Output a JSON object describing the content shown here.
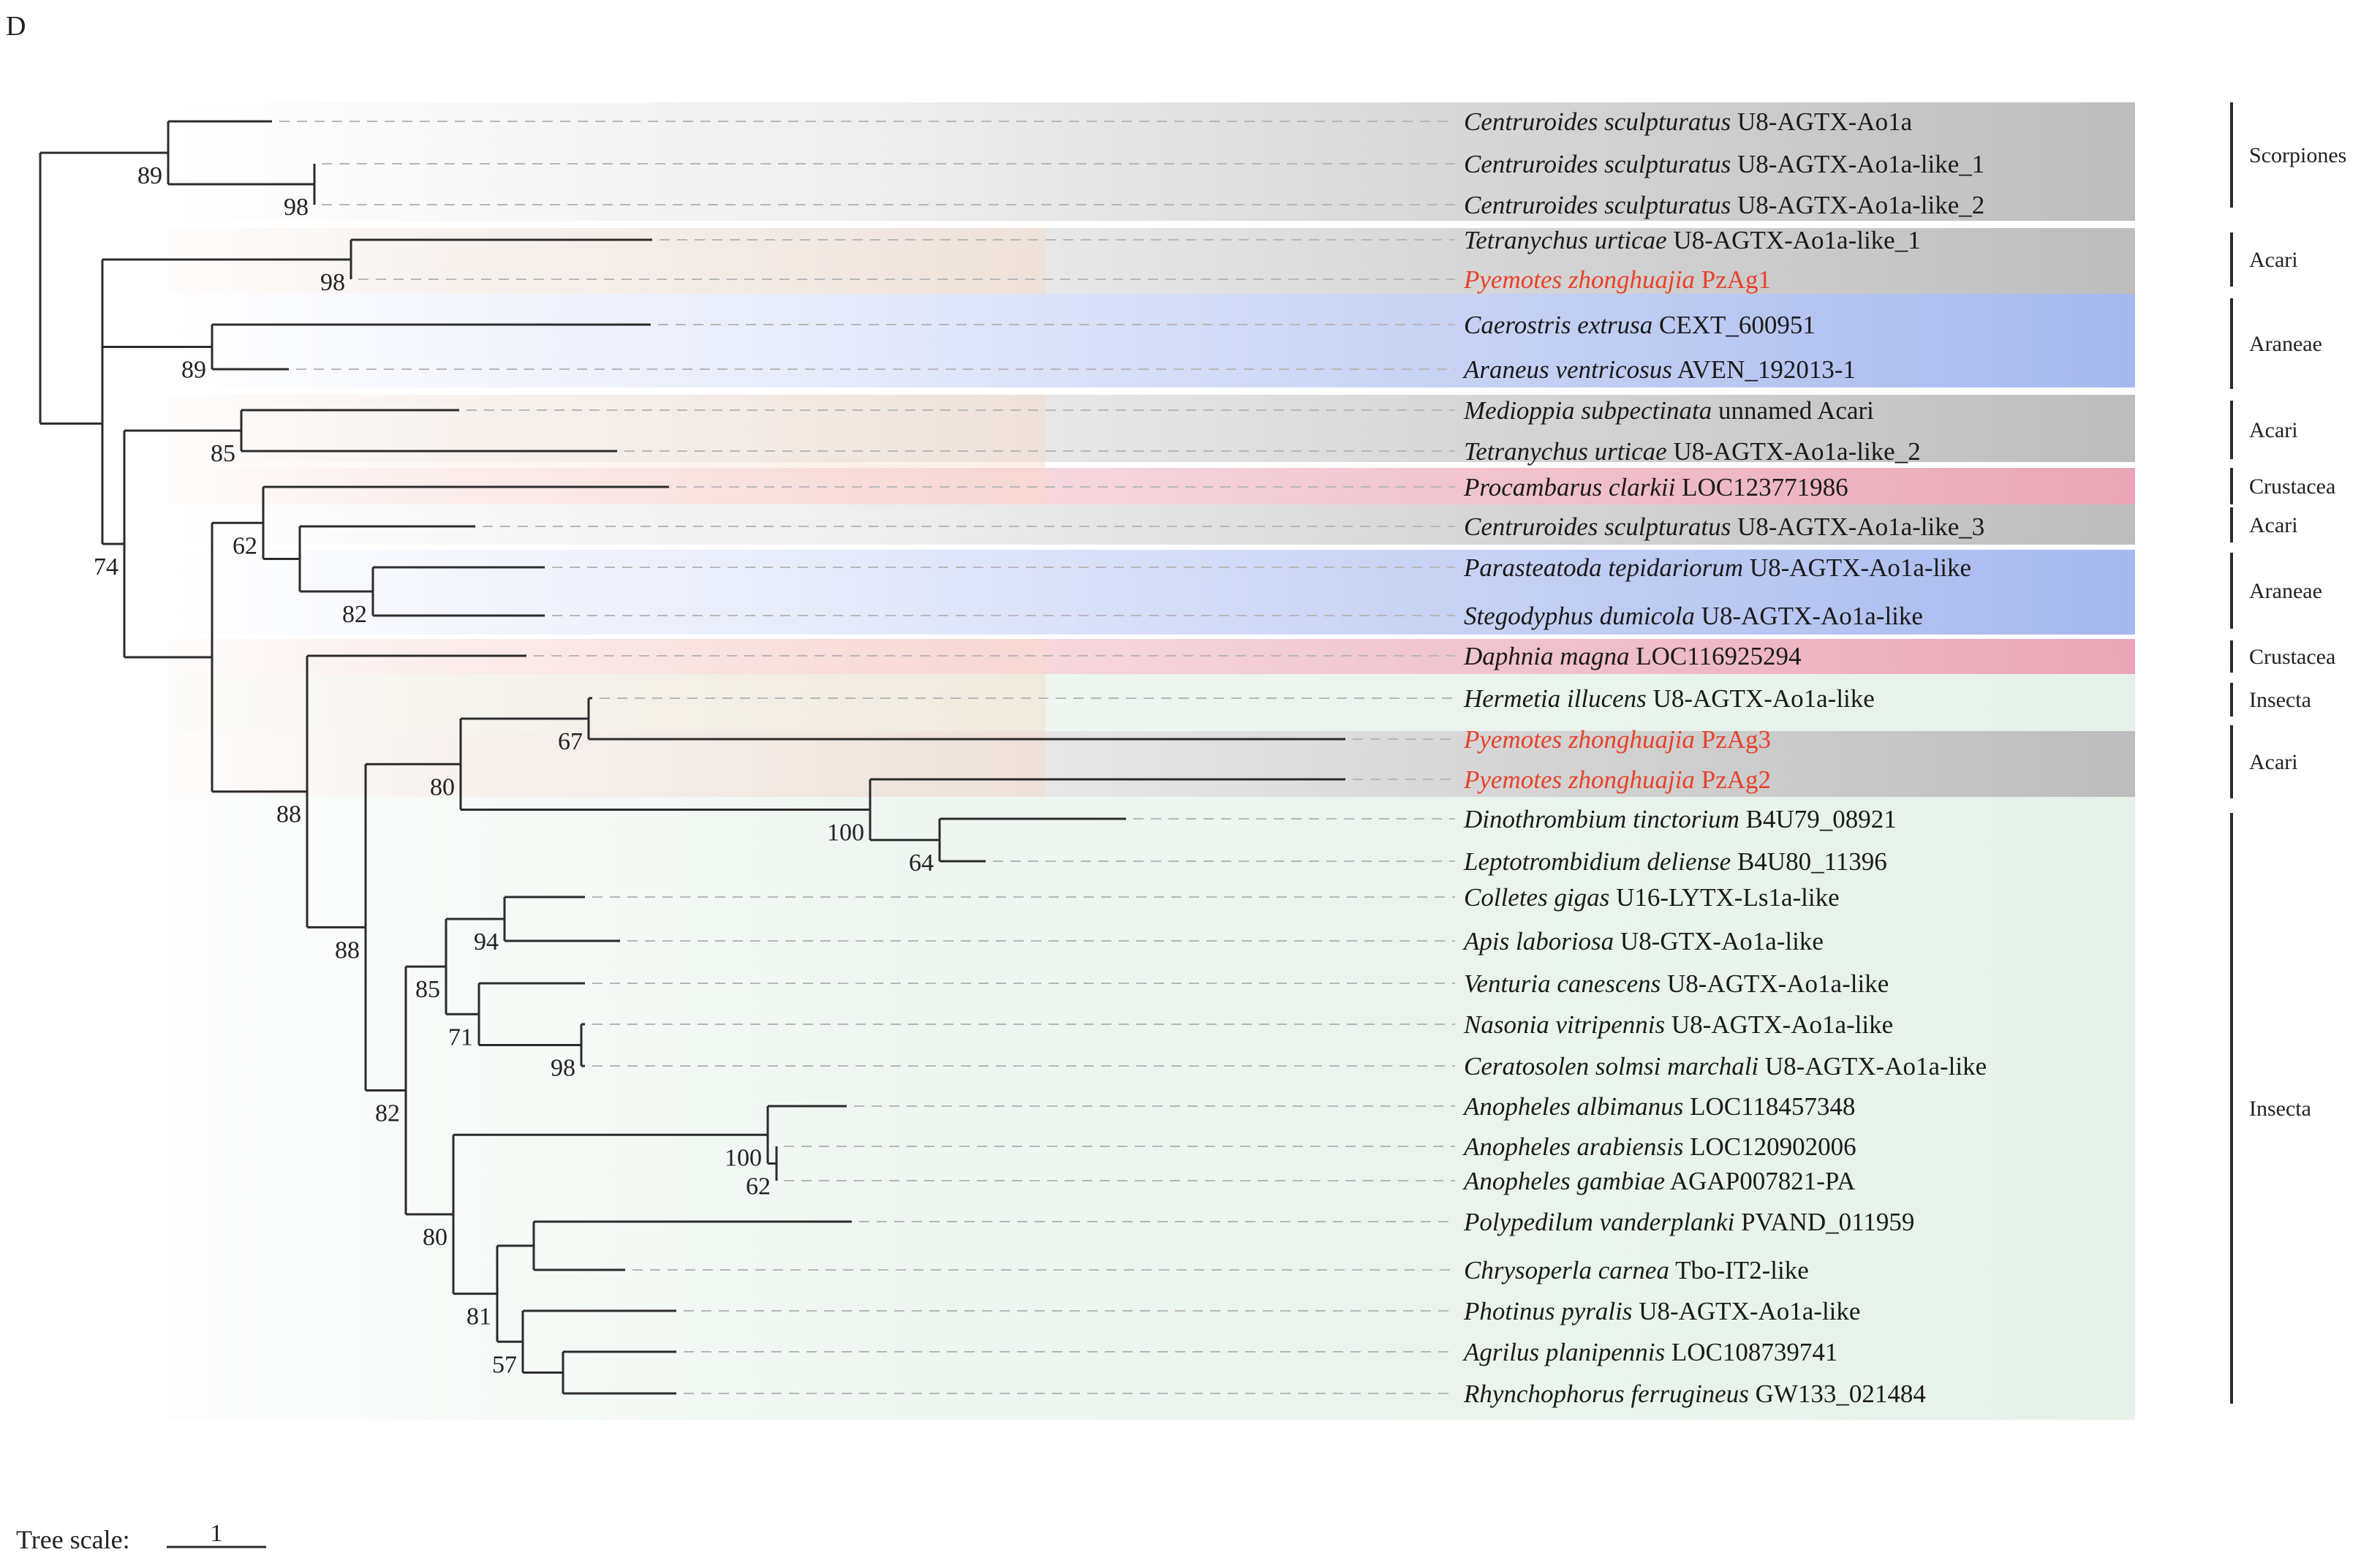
{
  "panel_label": "D",
  "scale_bar": {
    "label": "Tree scale:",
    "value": "1"
  },
  "colors": {
    "branch": "#2b2b2b",
    "dash": "#b8b8b8",
    "highlight_text": "#e8412a",
    "normal_text": "#1a1a1a",
    "gray": "#bdbdbd",
    "blue": "#a6b8ee",
    "pink": "#eaa6b6",
    "orange": "#f6d7c3",
    "green": "#e2f0e6"
  },
  "leaves": [
    {
      "genus": "Centruroides sculpturatus",
      "gene": "U8-AGTX-Ao1a",
      "highlight": false
    },
    {
      "genus": "Centruroides sculpturatus",
      "gene": "U8-AGTX-Ao1a-like_1",
      "highlight": false
    },
    {
      "genus": "Centruroides sculpturatus",
      "gene": "U8-AGTX-Ao1a-like_2",
      "highlight": false
    },
    {
      "genus": "Tetranychus urticae",
      "gene": "U8-AGTX-Ao1a-like_1",
      "highlight": false
    },
    {
      "genus": "Pyemotes zhonghuajia",
      "gene": "PzAg1",
      "highlight": true
    },
    {
      "genus": "Caerostris extrusa",
      "gene": "CEXT_600951",
      "highlight": false
    },
    {
      "genus": "Araneus ventricosus",
      "gene": "AVEN_192013-1",
      "highlight": false
    },
    {
      "genus": "Medioppia subpectinata",
      "gene": "unnamed Acari",
      "highlight": false
    },
    {
      "genus": "Tetranychus urticae",
      "gene": "U8-AGTX-Ao1a-like_2",
      "highlight": false
    },
    {
      "genus": "Procambarus clarkii",
      "gene": "LOC123771986",
      "highlight": false
    },
    {
      "genus": "Centruroides sculpturatus",
      "gene": "U8-AGTX-Ao1a-like_3",
      "highlight": false
    },
    {
      "genus": "Parasteatoda tepidariorum",
      "gene": "U8-AGTX-Ao1a-like",
      "highlight": false
    },
    {
      "genus": "Stegodyphus dumicola",
      "gene": "U8-AGTX-Ao1a-like",
      "highlight": false
    },
    {
      "genus": "Daphnia magna",
      "gene": "LOC116925294",
      "highlight": false
    },
    {
      "genus": "Hermetia illucens",
      "gene": "U8-AGTX-Ao1a-like",
      "highlight": false
    },
    {
      "genus": "Pyemotes zhonghuajia",
      "gene": "PzAg3",
      "highlight": true
    },
    {
      "genus": "Pyemotes zhonghuajia",
      "gene": "PzAg2",
      "highlight": true
    },
    {
      "genus": "Dinothrombium tinctorium",
      "gene": "B4U79_08921",
      "highlight": false
    },
    {
      "genus": "Leptotrombidium deliense",
      "gene": "B4U80_11396",
      "highlight": false
    },
    {
      "genus": "Colletes gigas",
      "gene": "U16-LYTX-Ls1a-like",
      "highlight": false
    },
    {
      "genus": "Apis laboriosa",
      "gene": "U8-GTX-Ao1a-like",
      "highlight": false
    },
    {
      "genus": "Venturia canescens",
      "gene": "U8-AGTX-Ao1a-like",
      "highlight": false
    },
    {
      "genus": "Nasonia vitripennis",
      "gene": "U8-AGTX-Ao1a-like",
      "highlight": false
    },
    {
      "genus": "Ceratosolen solmsi marchali",
      "gene": "U8-AGTX-Ao1a-like",
      "highlight": false
    },
    {
      "genus": "Anopheles albimanus",
      "gene": "LOC118457348",
      "highlight": false
    },
    {
      "genus": "Anopheles arabiensis",
      "gene": "LOC120902006",
      "highlight": false
    },
    {
      "genus": "Anopheles gambiae",
      "gene": "AGAP007821-PA",
      "highlight": false
    },
    {
      "genus": "Polypedilum vanderplanki",
      "gene": "PVAND_011959",
      "highlight": false
    },
    {
      "genus": "Chrysoperla carnea",
      "gene": "Tbo-IT2-like",
      "highlight": false
    },
    {
      "genus": "Photinus pyralis",
      "gene": "U8-AGTX-Ao1a-like",
      "highlight": false
    },
    {
      "genus": "Agrilus planipennis",
      "gene": "LOC108739741",
      "highlight": false
    },
    {
      "genus": "Rhynchophorus ferrugineus",
      "gene": "GW133_021484",
      "highlight": false
    }
  ],
  "bootstrap_values": [
    "89",
    "98",
    "98",
    "89",
    "85",
    "74",
    "62",
    "82",
    "88",
    "67",
    "100",
    "80",
    "88",
    "64",
    "94",
    "85",
    "71",
    "98",
    "82",
    "100",
    "62",
    "80",
    "81",
    "57"
  ],
  "groups": [
    {
      "name": "Scorpiones"
    },
    {
      "name": "Acari"
    },
    {
      "name": "Araneae"
    },
    {
      "name": "Acari"
    },
    {
      "name": "Crustacea"
    },
    {
      "name": "Acari"
    },
    {
      "name": "Araneae"
    },
    {
      "name": "Crustacea"
    },
    {
      "name": "Insecta"
    },
    {
      "name": "Acari"
    },
    {
      "name": "Insecta"
    }
  ]
}
